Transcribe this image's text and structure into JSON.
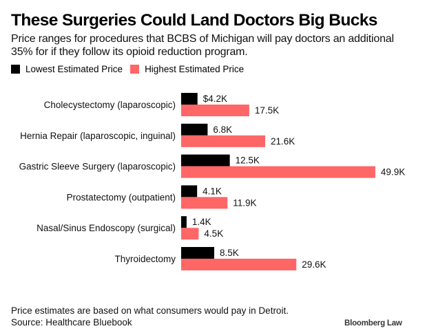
{
  "header": {
    "title": "These Surgeries Could Land Doctors Big Bucks",
    "subtitle": "Price ranges for procedures that BCBS of Michigan will pay doctors an additional 35% for if they follow its opioid reduction program."
  },
  "footer": {
    "note": "Price estimates are based on what consumers would pay in Detroit.",
    "source": "Source: Healthcare Bluebook",
    "brand": "Bloomberg Law"
  },
  "colors": {
    "low": "#000000",
    "high": "#ff6666"
  },
  "chart_data": {
    "type": "bar",
    "orientation": "horizontal",
    "title": "These Surgeries Could Land Doctors Big Bucks",
    "xlabel": "",
    "ylabel": "",
    "xlim": [
      0,
      50
    ],
    "grid": false,
    "legend_position": "top-left",
    "categories": [
      "Cholecystectomy (laparoscopic)",
      "Hernia Repair (laparoscopic, inguinal)",
      "Gastric Sleeve Surgery (laparoscopic)",
      "Prostatectomy (outpatient)",
      "Nasal/Sinus Endoscopy (surgical)",
      "Thyroidectomy"
    ],
    "series": [
      {
        "name": "Lowest Estimated Price",
        "values": [
          4.2,
          6.8,
          12.5,
          4.1,
          1.4,
          8.5
        ],
        "labels": [
          "$4.2K",
          "6.8K",
          "12.5K",
          "4.1K",
          "1.4K",
          "8.5K"
        ]
      },
      {
        "name": "Highest Estimated Price",
        "values": [
          17.5,
          21.6,
          49.9,
          11.9,
          4.5,
          29.6
        ],
        "labels": [
          "17.5K",
          "21.6K",
          "49.9K",
          "11.9K",
          "4.5K",
          "29.6K"
        ]
      }
    ],
    "units": "thousands USD"
  }
}
